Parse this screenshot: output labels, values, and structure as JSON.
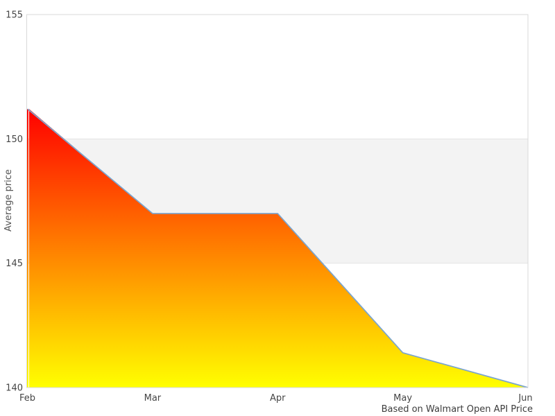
{
  "chart_data": {
    "type": "area",
    "title": "",
    "xlabel": "",
    "ylabel": "Average price",
    "caption": "Based on Walmart Open API Price",
    "categories": [
      "Feb",
      "Mar",
      "Apr",
      "May",
      "Jun"
    ],
    "values": [
      151.2,
      147.0,
      147.0,
      141.4,
      140.0
    ],
    "ylim": [
      140,
      155
    ],
    "yticks": [
      155,
      150,
      145,
      140
    ],
    "grid": "horizontal band only",
    "legend_position": "none",
    "band": {
      "from": 145,
      "to": 150,
      "color": "#f3f3f3",
      "edge_color": "#e4e4e4"
    },
    "colors": {
      "line": "#7aa5cf",
      "gradient_top": "#ff0000",
      "gradient_bottom": "#ffff00",
      "plot_border": "#d9d9d9",
      "tick_text": "#454545"
    }
  }
}
